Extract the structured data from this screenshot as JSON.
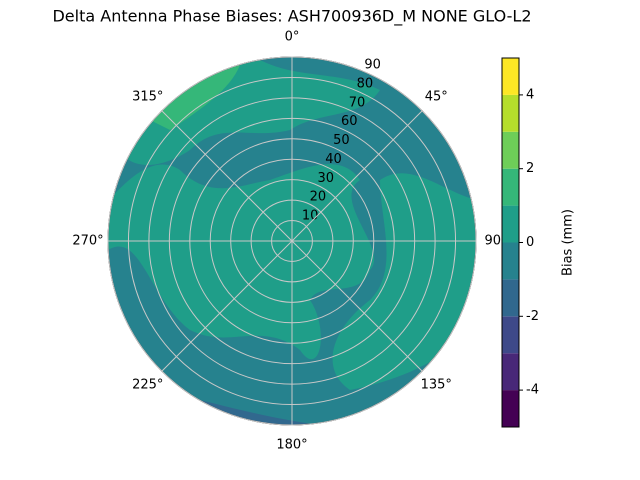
{
  "chart_data": {
    "type": "polar_contour",
    "title": "Delta Antenna Phase Biases: ASH700936D_M    NONE GLO-L2",
    "rlim": [
      0,
      90
    ],
    "rticks": [
      10,
      20,
      30,
      40,
      50,
      60,
      70,
      80,
      90
    ],
    "thetaticks": [
      {
        "value": 0,
        "label": "0°"
      },
      {
        "value": 45,
        "label": "45°"
      },
      {
        "value": 90,
        "label": "90°"
      },
      {
        "value": 135,
        "label": "135°"
      },
      {
        "value": 180,
        "label": "180°"
      },
      {
        "value": 225,
        "label": "225°"
      },
      {
        "value": 270,
        "label": "270°"
      },
      {
        "value": 315,
        "label": "315°"
      }
    ],
    "grid": true,
    "colorbar": {
      "label": "Bias (mm)",
      "clim": [
        -5,
        5
      ],
      "levels": [
        -5,
        -4,
        -3,
        -2,
        -1,
        0,
        1,
        2,
        3,
        4,
        5
      ],
      "colors": [
        "#440154",
        "#482878",
        "#3e4989",
        "#31688e",
        "#26828e",
        "#1f9e89",
        "#35b779",
        "#6ece58",
        "#b5de2b",
        "#fde725"
      ],
      "ticks": [
        -4,
        -2,
        0,
        2,
        4
      ]
    }
  }
}
